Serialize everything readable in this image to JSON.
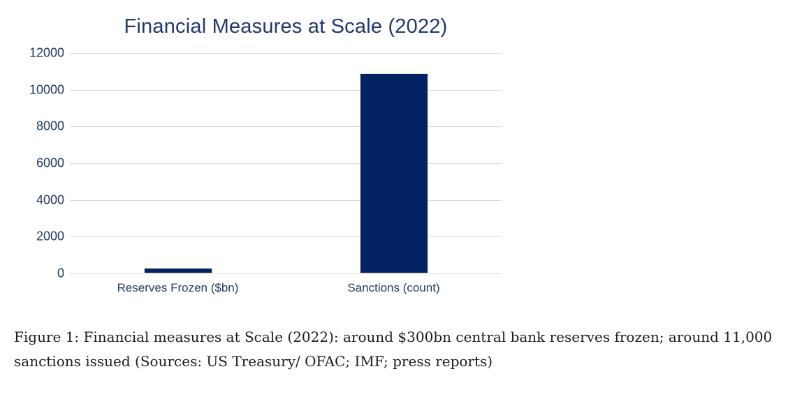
{
  "chart_data": {
    "type": "bar",
    "title": "Financial Measures at Scale (2022)",
    "categories": [
      "Reserves Frozen ($bn)",
      "Sanctions (count)"
    ],
    "values": [
      300,
      10900
    ],
    "xlabel": "",
    "ylabel": "",
    "ylim": [
      0,
      12000
    ],
    "yticks": [
      0,
      2000,
      4000,
      6000,
      8000,
      10000,
      12000
    ],
    "grid": true,
    "legend": false,
    "colors": {
      "bar_fill": "#032264",
      "bar_border": "#efe9c4",
      "gridline": "#d9d9d9",
      "axis_text": "#243b5e",
      "title_text": "#21386b"
    }
  },
  "caption": {
    "lines": [
      "Figure 1: Financial measures at Scale (2022): around $300bn central bank reserves frozen; around 11,000",
      "sanctions issued (Sources: US Treasury/ OFAC; IMF; press reports)"
    ],
    "text": "Figure 1: Financial measures at Scale (2022): around $300bn central bank reserves frozen; around 11,000 sanctions issued (Sources: US Treasury/ OFAC; IMF; press reports)"
  }
}
